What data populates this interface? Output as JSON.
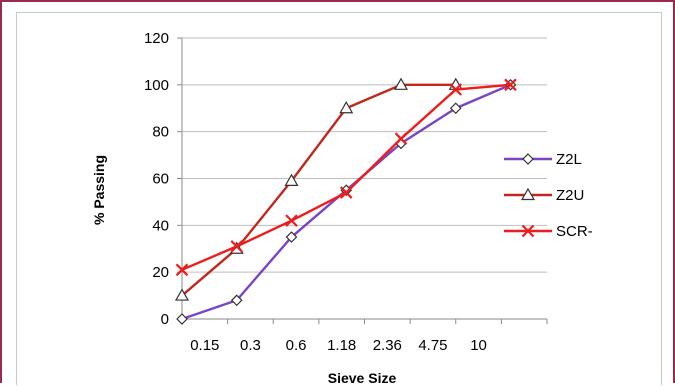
{
  "chart_data": {
    "type": "line",
    "title": "",
    "xlabel": "Sieve Size",
    "ylabel": "% Passing",
    "categories": [
      "",
      "0.15",
      "0.3",
      "0.6",
      "1.18",
      "2.36",
      "4.75",
      "10",
      ""
    ],
    "ylim": [
      0,
      120
    ],
    "yticks": [
      0,
      20,
      40,
      60,
      80,
      100,
      120
    ],
    "grid": "horizontal",
    "legend": "right",
    "series": [
      {
        "name": "Z2L",
        "color": "#7a44c4",
        "marker": "diamond-open",
        "points": [
          [
            0,
            0
          ],
          [
            1.2,
            8
          ],
          [
            2.4,
            35
          ],
          [
            3.6,
            55
          ],
          [
            4.8,
            75
          ],
          [
            6.0,
            90
          ],
          [
            7.2,
            100
          ]
        ]
      },
      {
        "name": "Z2U",
        "color": "#c0281e",
        "marker": "triangle-open",
        "points": [
          [
            0,
            10
          ],
          [
            1.2,
            30
          ],
          [
            2.4,
            59
          ],
          [
            3.6,
            90
          ],
          [
            4.8,
            100
          ],
          [
            6.0,
            100
          ]
        ]
      },
      {
        "name": "SCR-",
        "color": "#ee1c1c",
        "marker": "x",
        "points": [
          [
            0,
            21
          ],
          [
            1.2,
            31
          ],
          [
            2.4,
            42
          ],
          [
            3.6,
            54
          ],
          [
            4.8,
            77
          ],
          [
            6.0,
            98
          ],
          [
            7.2,
            100
          ]
        ]
      }
    ]
  }
}
